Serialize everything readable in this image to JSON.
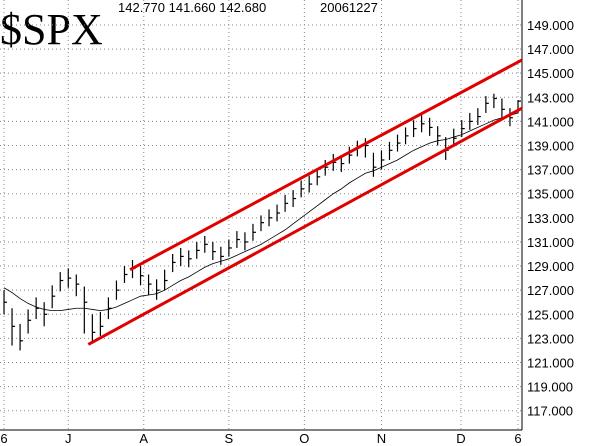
{
  "chart_data": {
    "type": "hlc",
    "title": "$SPX",
    "quote": "142.770 141.660 142.680",
    "date": "20061227",
    "xlim": [
      -0.5,
      64.5
    ],
    "xticks": [
      {
        "value": 0,
        "label": "6"
      },
      {
        "value": 8,
        "label": "J"
      },
      {
        "value": 17.4,
        "label": "A"
      },
      {
        "value": 28,
        "label": "S"
      },
      {
        "value": 37.4,
        "label": "O"
      },
      {
        "value": 47,
        "label": "N"
      },
      {
        "value": 56.9,
        "label": "D"
      },
      {
        "value": 64,
        "label": "6"
      }
    ],
    "ylim": [
      115.4,
      151.07
    ],
    "yticks": [
      {
        "value": 117,
        "label": "117.000"
      },
      {
        "value": 119,
        "label": "119.000"
      },
      {
        "value": 121,
        "label": "121.000"
      },
      {
        "value": 123,
        "label": "123.000"
      },
      {
        "value": 125,
        "label": "125.000"
      },
      {
        "value": 127,
        "label": "127.000"
      },
      {
        "value": 129,
        "label": "129.000"
      },
      {
        "value": 131,
        "label": "131.000"
      },
      {
        "value": 133,
        "label": "133.000"
      },
      {
        "value": 135,
        "label": "135.000"
      },
      {
        "value": 137,
        "label": "137.000"
      },
      {
        "value": 139,
        "label": "139.000"
      },
      {
        "value": 141,
        "label": "141.000"
      },
      {
        "value": 143,
        "label": "143.000"
      },
      {
        "value": 145,
        "label": "145.000"
      },
      {
        "value": 147,
        "label": "147.000"
      },
      {
        "value": 149,
        "label": "149.000"
      }
    ],
    "grid": true,
    "color": "#000000",
    "trend_color": "#e00000",
    "close": [
      126.0,
      124.0,
      122.8,
      124.5,
      125.5,
      125.0,
      126.5,
      127.8,
      128.0,
      127.5,
      126.0,
      123.5,
      124.0,
      125.5,
      127.0,
      128.3,
      128.8,
      128.2,
      127.5,
      127.0,
      127.8,
      129.3,
      129.8,
      129.6,
      130.3,
      130.8,
      130.2,
      129.8,
      130.5,
      131.2,
      131.0,
      131.8,
      132.6,
      133.0,
      133.4,
      134.2,
      134.6,
      135.4,
      135.8,
      136.4,
      137.2,
      137.6,
      137.5,
      138.2,
      138.8,
      139.0,
      137.2,
      137.8,
      138.6,
      139.2,
      139.8,
      140.4,
      140.8,
      140.5,
      139.8,
      138.6,
      139.6,
      140.4,
      141.0,
      141.4,
      142.5,
      142.9,
      142.0,
      141.3,
      142.68
    ],
    "high": [
      127.0,
      125.5,
      124.2,
      125.4,
      126.4,
      126.0,
      127.4,
      128.5,
      128.8,
      128.3,
      127.3,
      125.0,
      125.2,
      126.4,
      127.8,
      129.0,
      129.5,
      129.0,
      128.3,
      127.9,
      128.7,
      130.0,
      130.5,
      130.3,
      131.0,
      131.5,
      131.0,
      130.6,
      131.2,
      131.9,
      131.8,
      132.5,
      133.2,
      133.7,
      134.1,
      134.9,
      135.3,
      136.1,
      136.5,
      137.1,
      137.8,
      138.3,
      138.2,
      138.9,
      139.4,
      139.6,
      138.4,
      138.6,
      139.3,
      139.9,
      140.5,
      141.1,
      141.5,
      141.3,
      140.6,
      139.7,
      140.4,
      141.1,
      141.7,
      142.1,
      143.1,
      143.3,
      142.9,
      142.1,
      142.77
    ],
    "low": [
      125.0,
      122.4,
      122.0,
      123.4,
      124.6,
      124.0,
      125.5,
      126.9,
      127.2,
      126.5,
      123.4,
      122.6,
      123.2,
      124.6,
      126.2,
      127.6,
      128.0,
      127.4,
      126.6,
      126.2,
      127.0,
      128.5,
      129.0,
      128.9,
      129.6,
      130.1,
      129.5,
      129.1,
      129.8,
      130.5,
      130.3,
      131.1,
      131.9,
      132.3,
      132.7,
      133.5,
      133.9,
      134.7,
      135.1,
      135.7,
      136.5,
      136.9,
      136.8,
      137.5,
      138.1,
      138.0,
      136.4,
      137.0,
      137.8,
      138.5,
      139.1,
      139.7,
      140.1,
      139.8,
      139.0,
      137.8,
      138.9,
      139.7,
      140.3,
      140.7,
      141.7,
      142.1,
      141.3,
      140.6,
      141.66
    ],
    "moving_average": [
      127.2,
      126.8,
      126.3,
      125.9,
      125.6,
      125.4,
      125.3,
      125.3,
      125.4,
      125.5,
      125.5,
      125.4,
      125.3,
      125.4,
      125.6,
      125.9,
      126.2,
      126.5,
      126.6,
      126.7,
      127.0,
      127.4,
      127.8,
      128.1,
      128.5,
      128.9,
      129.2,
      129.4,
      129.6,
      129.9,
      130.2,
      130.5,
      130.8,
      131.2,
      131.6,
      132.0,
      132.5,
      133.0,
      133.5,
      134.0,
      134.5,
      135.0,
      135.4,
      135.9,
      136.3,
      136.7,
      136.9,
      137.2,
      137.5,
      137.8,
      138.2,
      138.6,
      138.9,
      139.2,
      139.4,
      139.5,
      139.7,
      139.9,
      140.2,
      140.5,
      140.8,
      141.1,
      141.3,
      141.5,
      141.7
    ],
    "trendlines": [
      {
        "x": [
          15.7,
          64.5
        ],
        "y": [
          128.7,
          146.1
        ]
      },
      {
        "x": [
          10.5,
          64.5
        ],
        "y": [
          122.5,
          142.1
        ]
      }
    ]
  }
}
